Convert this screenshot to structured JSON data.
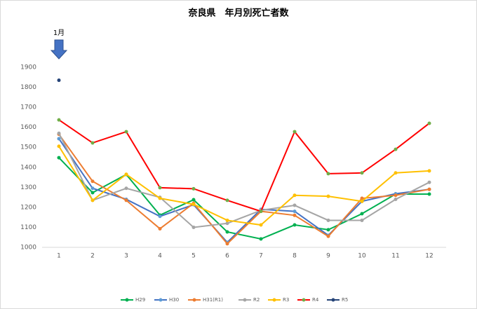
{
  "chart_data": {
    "type": "line",
    "title": "奈良県　年月別死亡者数",
    "annotation": "1月",
    "categories": [
      "1",
      "2",
      "3",
      "4",
      "5",
      "6",
      "7",
      "8",
      "9",
      "10",
      "11",
      "12"
    ],
    "ylim": [
      1000,
      1900
    ],
    "yticks": [
      1000,
      1100,
      1200,
      1300,
      1400,
      1500,
      1600,
      1700,
      1800,
      1900
    ],
    "grid": false,
    "legend": "bottom",
    "series": [
      {
        "name": "H29",
        "color": "#00b050",
        "marker": "#00b050",
        "values": [
          1448,
          1273,
          1364,
          1161,
          1238,
          1077,
          1042,
          1112,
          1088,
          1168,
          1266,
          1266
        ]
      },
      {
        "name": "H30",
        "color": "#4472c4",
        "marker": "#5b9bd5",
        "values": [
          1543,
          1295,
          1240,
          1155,
          1213,
          1025,
          1190,
          1180,
          1060,
          1230,
          1268,
          1290
        ]
      },
      {
        "name": "H31(R1)",
        "color": "#ed7d31",
        "marker": "#ed7d31",
        "values": [
          1565,
          1330,
          1235,
          1093,
          1220,
          1018,
          1180,
          1160,
          1055,
          1245,
          1260,
          1290
        ]
      },
      {
        "name": "R2",
        "color": "#a5a5a5",
        "marker": "#a5a5a5",
        "values": [
          1570,
          1235,
          1295,
          1250,
          1100,
          1120,
          1185,
          1210,
          1135,
          1135,
          1240,
          1325
        ]
      },
      {
        "name": "R3",
        "color": "#ffc000",
        "marker": "#ffc000",
        "values": [
          1505,
          1235,
          1365,
          1245,
          1215,
          1135,
          1112,
          1260,
          1255,
          1230,
          1372,
          1382
        ]
      },
      {
        "name": "R4",
        "color": "#ff0000",
        "marker": "#70ad47",
        "values": [
          1637,
          1522,
          1578,
          1298,
          1293,
          1235,
          1180,
          1578,
          1368,
          1372,
          1490,
          1620
        ]
      },
      {
        "name": "R5",
        "color": "#264478",
        "marker": "#264478",
        "values": [
          1835,
          null,
          null,
          null,
          null,
          null,
          null,
          null,
          null,
          null,
          null,
          null
        ]
      }
    ]
  }
}
